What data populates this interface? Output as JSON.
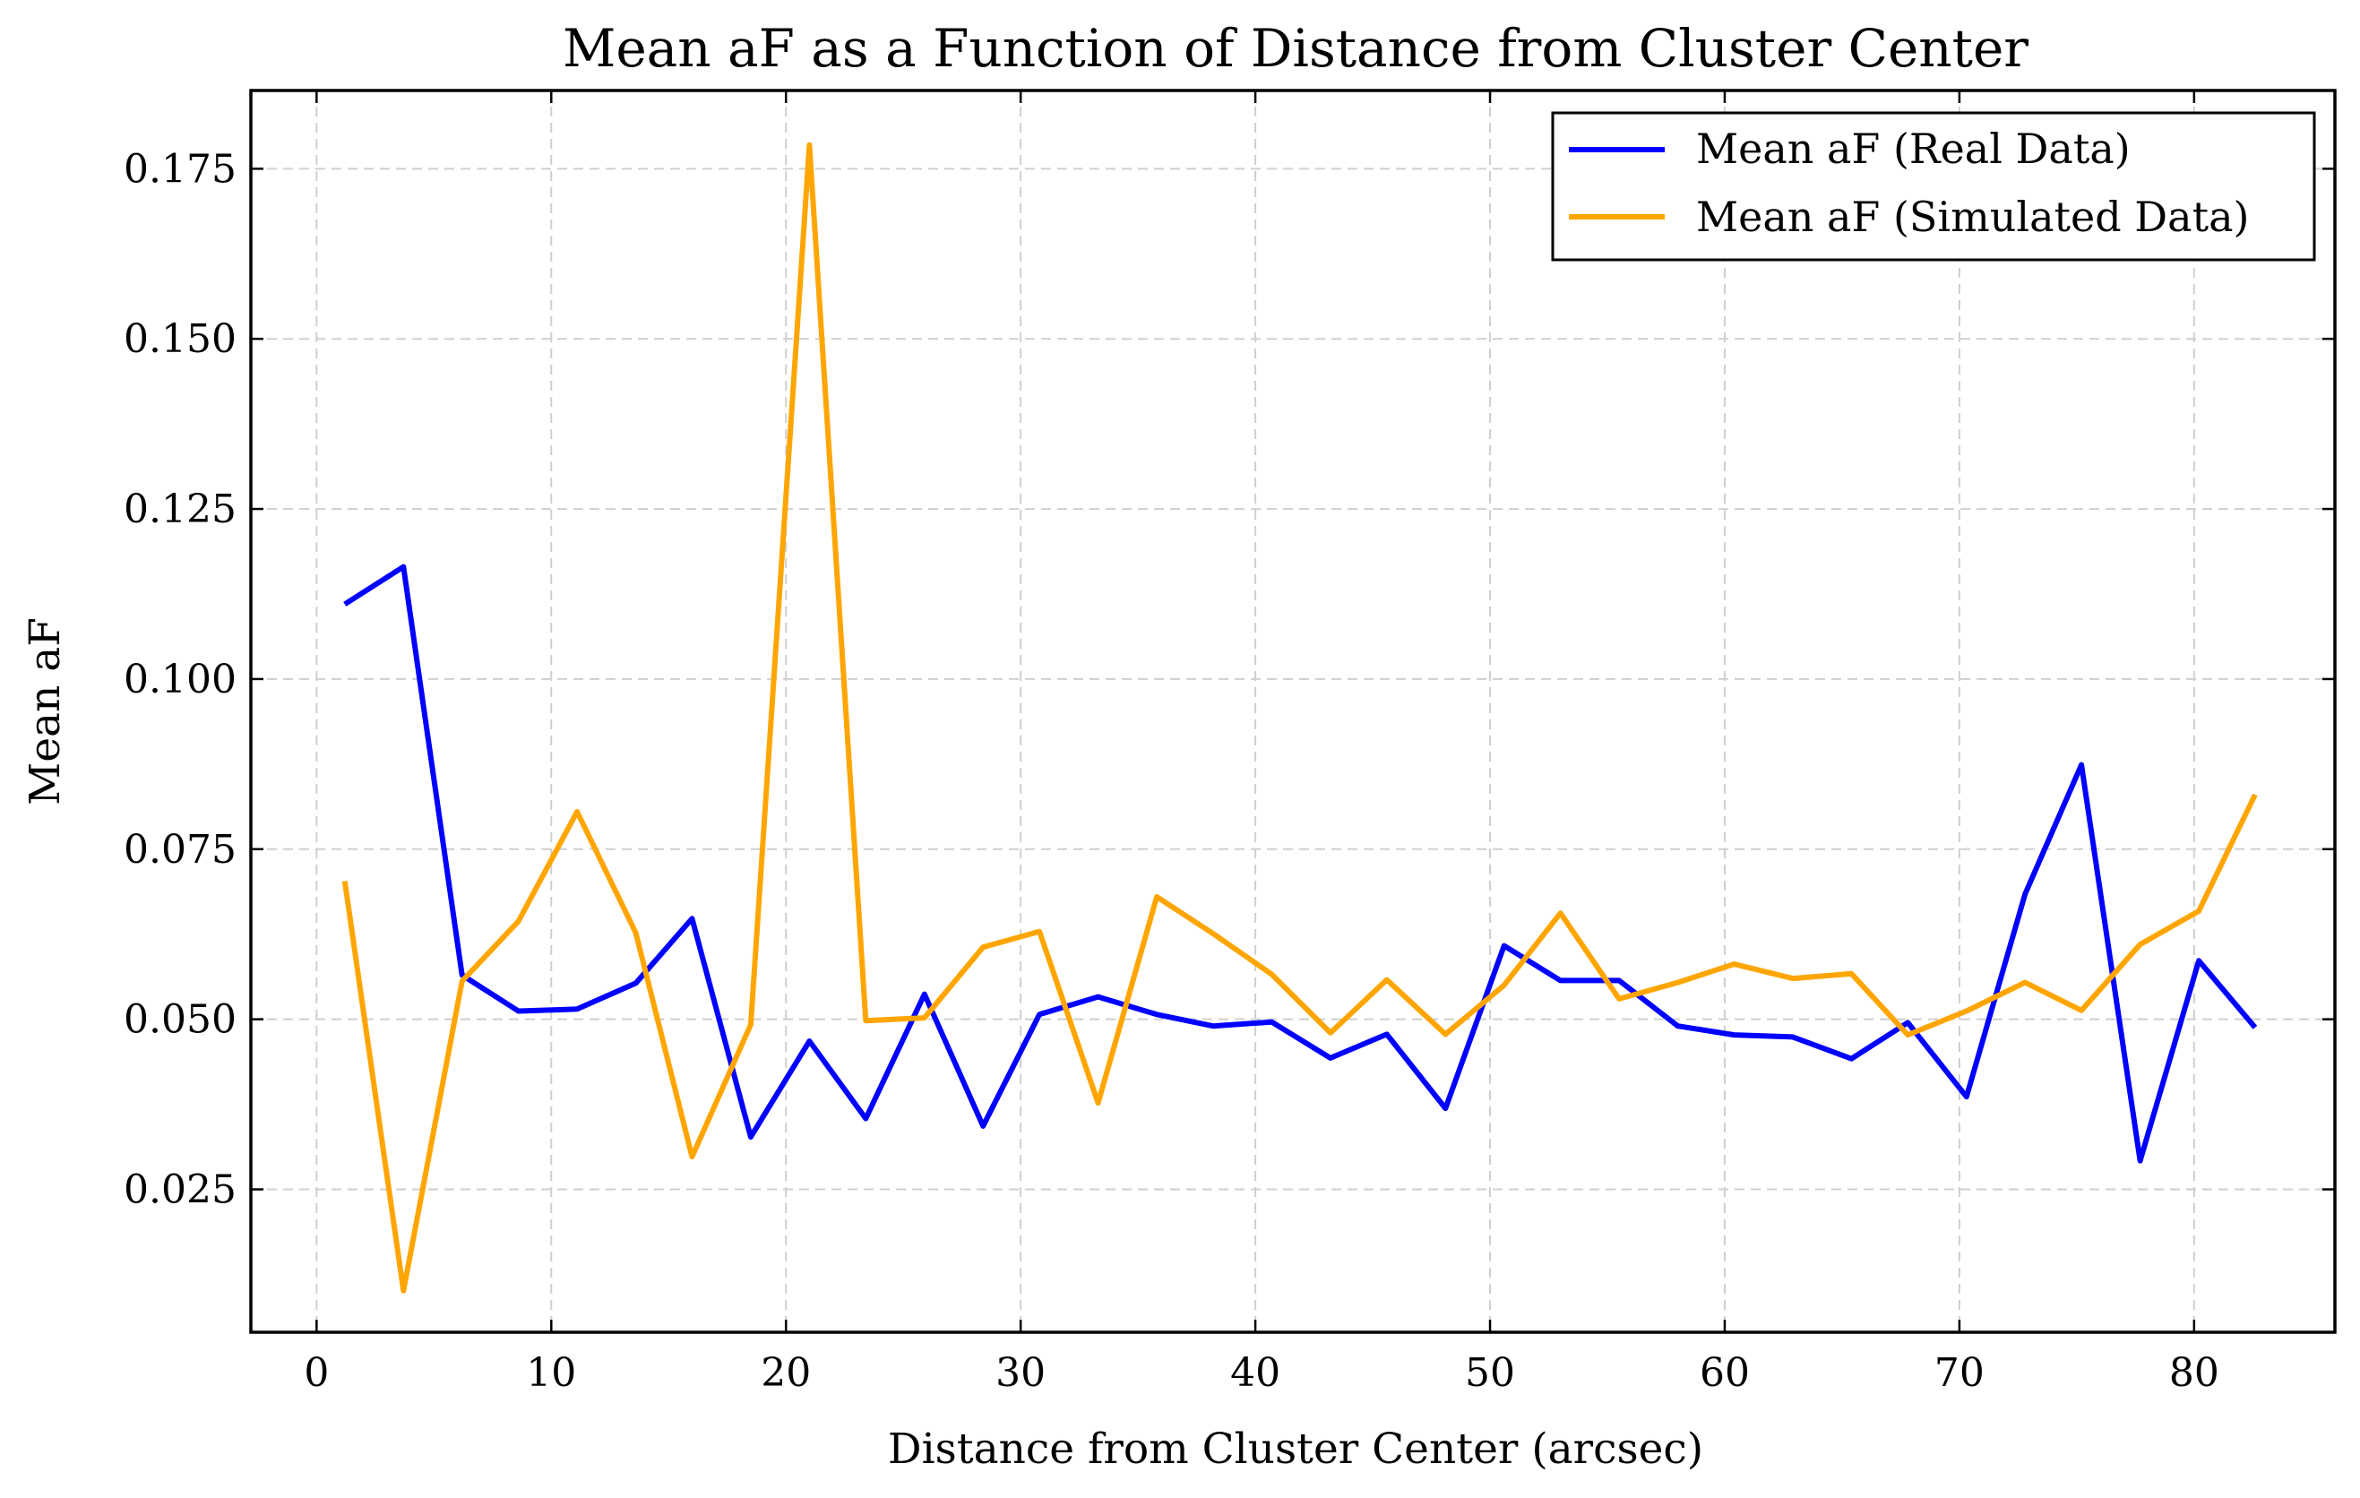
{
  "chart_data": {
    "type": "line",
    "title": "Mean aF as a Function of Distance from Cluster Center",
    "xlabel": "Distance from Cluster Center (arcsec)",
    "ylabel": "Mean aF",
    "xlim": [
      -2.8,
      86
    ],
    "ylim": [
      0.004,
      0.1865
    ],
    "xticks": [
      0,
      10,
      20,
      30,
      40,
      50,
      60,
      70,
      80
    ],
    "xtick_labels": [
      "0",
      "10",
      "20",
      "30",
      "40",
      "50",
      "60",
      "70",
      "80"
    ],
    "yticks": [
      0.025,
      0.05,
      0.075,
      0.1,
      0.125,
      0.15,
      0.175
    ],
    "ytick_labels": [
      "0.025",
      "0.050",
      "0.075",
      "0.100",
      "0.125",
      "0.150",
      "0.175"
    ],
    "grid": true,
    "legend_position": "top-right",
    "x": [
      1.2,
      3.7,
      6.2,
      8.6,
      11.1,
      13.6,
      16.0,
      18.5,
      21.0,
      23.4,
      25.9,
      28.4,
      30.8,
      33.3,
      35.8,
      38.2,
      40.7,
      43.2,
      45.6,
      48.1,
      50.6,
      53.0,
      55.5,
      58.0,
      60.4,
      62.9,
      65.4,
      67.8,
      70.3,
      72.8,
      75.2,
      77.7,
      80.2,
      82.6
    ],
    "series": [
      {
        "name": "Mean aF (Real Data)",
        "color": "#0000ff",
        "values": [
          0.111,
          0.1165,
          0.0565,
          0.0512,
          0.0515,
          0.0553,
          0.0648,
          0.0327,
          0.0468,
          0.0354,
          0.0537,
          0.0343,
          0.0507,
          0.0533,
          0.0507,
          0.049,
          0.0496,
          0.0443,
          0.0478,
          0.0369,
          0.0608,
          0.0557,
          0.0557,
          0.049,
          0.0477,
          0.0474,
          0.0442,
          0.0495,
          0.0386,
          0.0684,
          0.0874,
          0.0292,
          0.0586,
          0.0488
        ]
      },
      {
        "name": "Mean aF (Simulated Data)",
        "color": "#ffa500",
        "values": [
          0.0703,
          0.0101,
          0.0556,
          0.0644,
          0.0805,
          0.0627,
          0.0298,
          0.0492,
          0.1785,
          0.0498,
          0.0502,
          0.0606,
          0.0629,
          0.0377,
          0.068,
          0.0626,
          0.0566,
          0.048,
          0.0558,
          0.0478,
          0.055,
          0.0656,
          0.053,
          0.0554,
          0.0581,
          0.056,
          0.0567,
          0.0477,
          0.0512,
          0.0554,
          0.0513,
          0.061,
          0.0659,
          0.083
        ]
      }
    ]
  }
}
